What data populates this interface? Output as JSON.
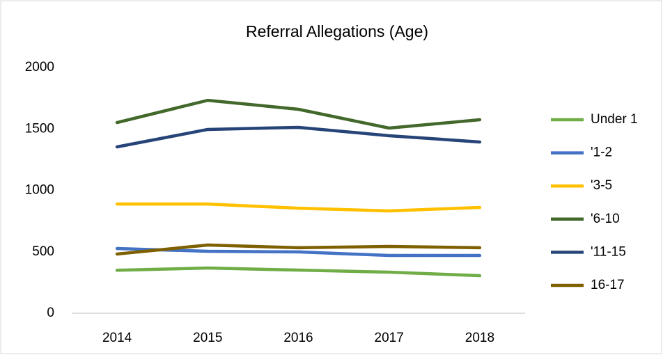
{
  "chart_data": {
    "type": "line",
    "title": "Referral Allegations (Age)",
    "categories": [
      "2014",
      "2015",
      "2016",
      "2017",
      "2018"
    ],
    "series": [
      {
        "name": "Under 1",
        "color": "#70ad47",
        "values": [
          350,
          368,
          351,
          334,
          306
        ]
      },
      {
        "name": "'1-2",
        "color": "#4472c4",
        "values": [
          527,
          504,
          499,
          470,
          470
        ]
      },
      {
        "name": "'3-5",
        "color": "#ffc000",
        "values": [
          889,
          889,
          855,
          833,
          861
        ]
      },
      {
        "name": "'6-10",
        "color": "#43682b",
        "values": [
          1552,
          1733,
          1660,
          1507,
          1575
        ]
      },
      {
        "name": "'11-15",
        "color": "#264478",
        "values": [
          1354,
          1496,
          1513,
          1445,
          1394
        ]
      },
      {
        "name": "16-17",
        "color": "#7f6000",
        "values": [
          482,
          555,
          533,
          544,
          533
        ]
      }
    ],
    "ylim": [
      0,
      2000
    ],
    "yticks": [
      0,
      500,
      1000,
      1500,
      2000
    ],
    "grid": false,
    "legend": "right"
  }
}
